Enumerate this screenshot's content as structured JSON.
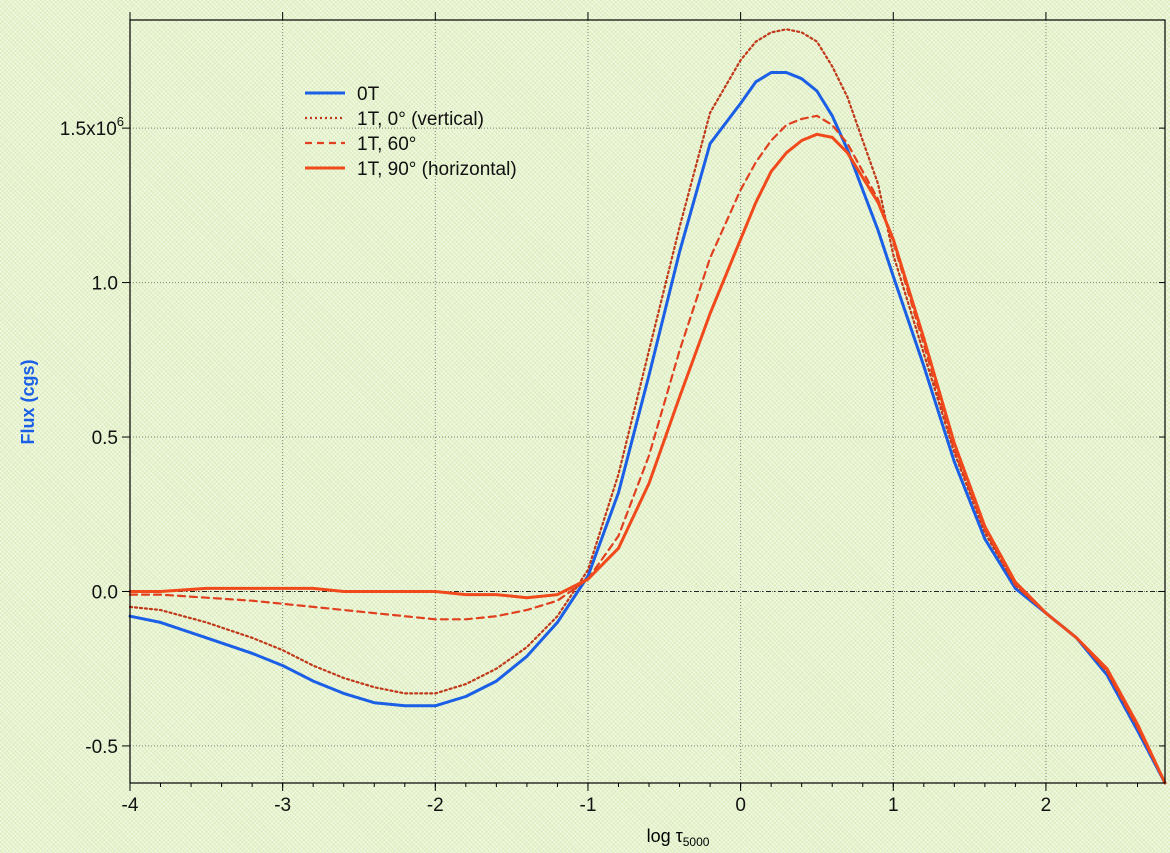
{
  "chart_data": {
    "type": "line",
    "xlabel": "log τ",
    "xlabel_sub": "5000",
    "ylabel": "Flux (cgs)",
    "ylabel_color": "#1a5fe6",
    "xlim": [
      -4,
      2.78
    ],
    "ylim": [
      -0.62,
      1.85
    ],
    "y_multiplier_label": "x10",
    "y_multiplier_exp": "6",
    "x_ticks": [
      {
        "value": -4,
        "label": "-4"
      },
      {
        "value": -3,
        "label": "-3"
      },
      {
        "value": -2,
        "label": "-2"
      },
      {
        "value": -1,
        "label": "-1"
      },
      {
        "value": 0,
        "label": "0"
      },
      {
        "value": 1,
        "label": "1"
      },
      {
        "value": 2,
        "label": "2"
      }
    ],
    "y_ticks": [
      {
        "value": -0.5,
        "label": "-0.5"
      },
      {
        "value": 0,
        "label": "0.0"
      },
      {
        "value": 0.5,
        "label": "0.5"
      },
      {
        "value": 1.0,
        "label": "1.0"
      },
      {
        "value": 1.5,
        "label": "1.5"
      }
    ],
    "grid": true,
    "zero_line": true,
    "legend_position": "top-left",
    "series": [
      {
        "name": "0T",
        "color": "#1a5fe6",
        "dash": "solid",
        "x": [
          -4.0,
          -3.8,
          -3.5,
          -3.2,
          -3.0,
          -2.8,
          -2.6,
          -2.4,
          -2.2,
          -2.0,
          -1.8,
          -1.6,
          -1.4,
          -1.2,
          -1.0,
          -0.8,
          -0.6,
          -0.4,
          -0.2,
          0.0,
          0.1,
          0.2,
          0.3,
          0.4,
          0.5,
          0.6,
          0.7,
          0.8,
          0.9,
          1.0,
          1.2,
          1.4,
          1.6,
          1.8,
          2.0,
          2.2,
          2.4,
          2.6,
          2.78
        ],
        "y": [
          -0.08,
          -0.1,
          -0.15,
          -0.2,
          -0.24,
          -0.29,
          -0.33,
          -0.36,
          -0.37,
          -0.37,
          -0.34,
          -0.29,
          -0.21,
          -0.1,
          0.05,
          0.32,
          0.7,
          1.1,
          1.45,
          1.58,
          1.65,
          1.68,
          1.68,
          1.66,
          1.62,
          1.54,
          1.43,
          1.3,
          1.17,
          1.02,
          0.73,
          0.42,
          0.17,
          0.01,
          -0.07,
          -0.15,
          -0.27,
          -0.45,
          -0.62
        ]
      },
      {
        "name": "1T, 0° (vertical)",
        "color": "#c0391b",
        "dash": "dotted",
        "x": [
          -4.0,
          -3.8,
          -3.5,
          -3.2,
          -3.0,
          -2.8,
          -2.6,
          -2.4,
          -2.2,
          -2.0,
          -1.8,
          -1.6,
          -1.4,
          -1.2,
          -1.0,
          -0.8,
          -0.6,
          -0.4,
          -0.2,
          0.0,
          0.1,
          0.2,
          0.3,
          0.4,
          0.5,
          0.6,
          0.7,
          0.8,
          0.9,
          1.0,
          1.2,
          1.4,
          1.6,
          1.8,
          2.0,
          2.2,
          2.4,
          2.6,
          2.78
        ],
        "y": [
          -0.05,
          -0.06,
          -0.1,
          -0.15,
          -0.19,
          -0.24,
          -0.28,
          -0.31,
          -0.33,
          -0.33,
          -0.3,
          -0.25,
          -0.18,
          -0.08,
          0.07,
          0.38,
          0.78,
          1.18,
          1.55,
          1.72,
          1.78,
          1.81,
          1.82,
          1.81,
          1.78,
          1.7,
          1.6,
          1.46,
          1.32,
          1.09,
          0.77,
          0.45,
          0.19,
          0.02,
          -0.07,
          -0.15,
          -0.26,
          -0.44,
          -0.62
        ]
      },
      {
        "name": "1T, 60°",
        "color": "#e0401f",
        "dash": "dashed",
        "x": [
          -4.0,
          -3.8,
          -3.5,
          -3.2,
          -3.0,
          -2.8,
          -2.6,
          -2.4,
          -2.2,
          -2.0,
          -1.8,
          -1.6,
          -1.4,
          -1.2,
          -1.0,
          -0.8,
          -0.6,
          -0.4,
          -0.2,
          0.0,
          0.1,
          0.2,
          0.3,
          0.4,
          0.5,
          0.6,
          0.7,
          0.8,
          0.9,
          1.0,
          1.2,
          1.4,
          1.6,
          1.8,
          2.0,
          2.2,
          2.4,
          2.6,
          2.78
        ],
        "y": [
          -0.01,
          -0.01,
          -0.02,
          -0.03,
          -0.04,
          -0.05,
          -0.06,
          -0.07,
          -0.08,
          -0.09,
          -0.09,
          -0.08,
          -0.06,
          -0.03,
          0.04,
          0.18,
          0.44,
          0.78,
          1.08,
          1.3,
          1.39,
          1.46,
          1.51,
          1.53,
          1.54,
          1.51,
          1.45,
          1.36,
          1.27,
          1.13,
          0.8,
          0.46,
          0.2,
          0.02,
          -0.07,
          -0.15,
          -0.26,
          -0.44,
          -0.62
        ]
      },
      {
        "name": "1T, 90° (horizontal)",
        "color": "#f04a1c",
        "dash": "solid",
        "x": [
          -4.0,
          -3.8,
          -3.5,
          -3.2,
          -3.0,
          -2.8,
          -2.6,
          -2.4,
          -2.2,
          -2.0,
          -1.8,
          -1.6,
          -1.4,
          -1.2,
          -1.0,
          -0.8,
          -0.6,
          -0.4,
          -0.2,
          0.0,
          0.1,
          0.2,
          0.3,
          0.4,
          0.5,
          0.6,
          0.7,
          0.8,
          0.9,
          1.0,
          1.2,
          1.4,
          1.6,
          1.8,
          2.0,
          2.2,
          2.4,
          2.6,
          2.78
        ],
        "y": [
          0.0,
          0.0,
          0.01,
          0.01,
          0.01,
          0.01,
          0.0,
          0.0,
          0.0,
          0.0,
          -0.01,
          -0.01,
          -0.02,
          -0.01,
          0.04,
          0.14,
          0.35,
          0.63,
          0.9,
          1.14,
          1.26,
          1.36,
          1.42,
          1.46,
          1.48,
          1.47,
          1.42,
          1.34,
          1.26,
          1.14,
          0.82,
          0.48,
          0.21,
          0.03,
          -0.07,
          -0.15,
          -0.25,
          -0.43,
          -0.62
        ]
      }
    ]
  }
}
